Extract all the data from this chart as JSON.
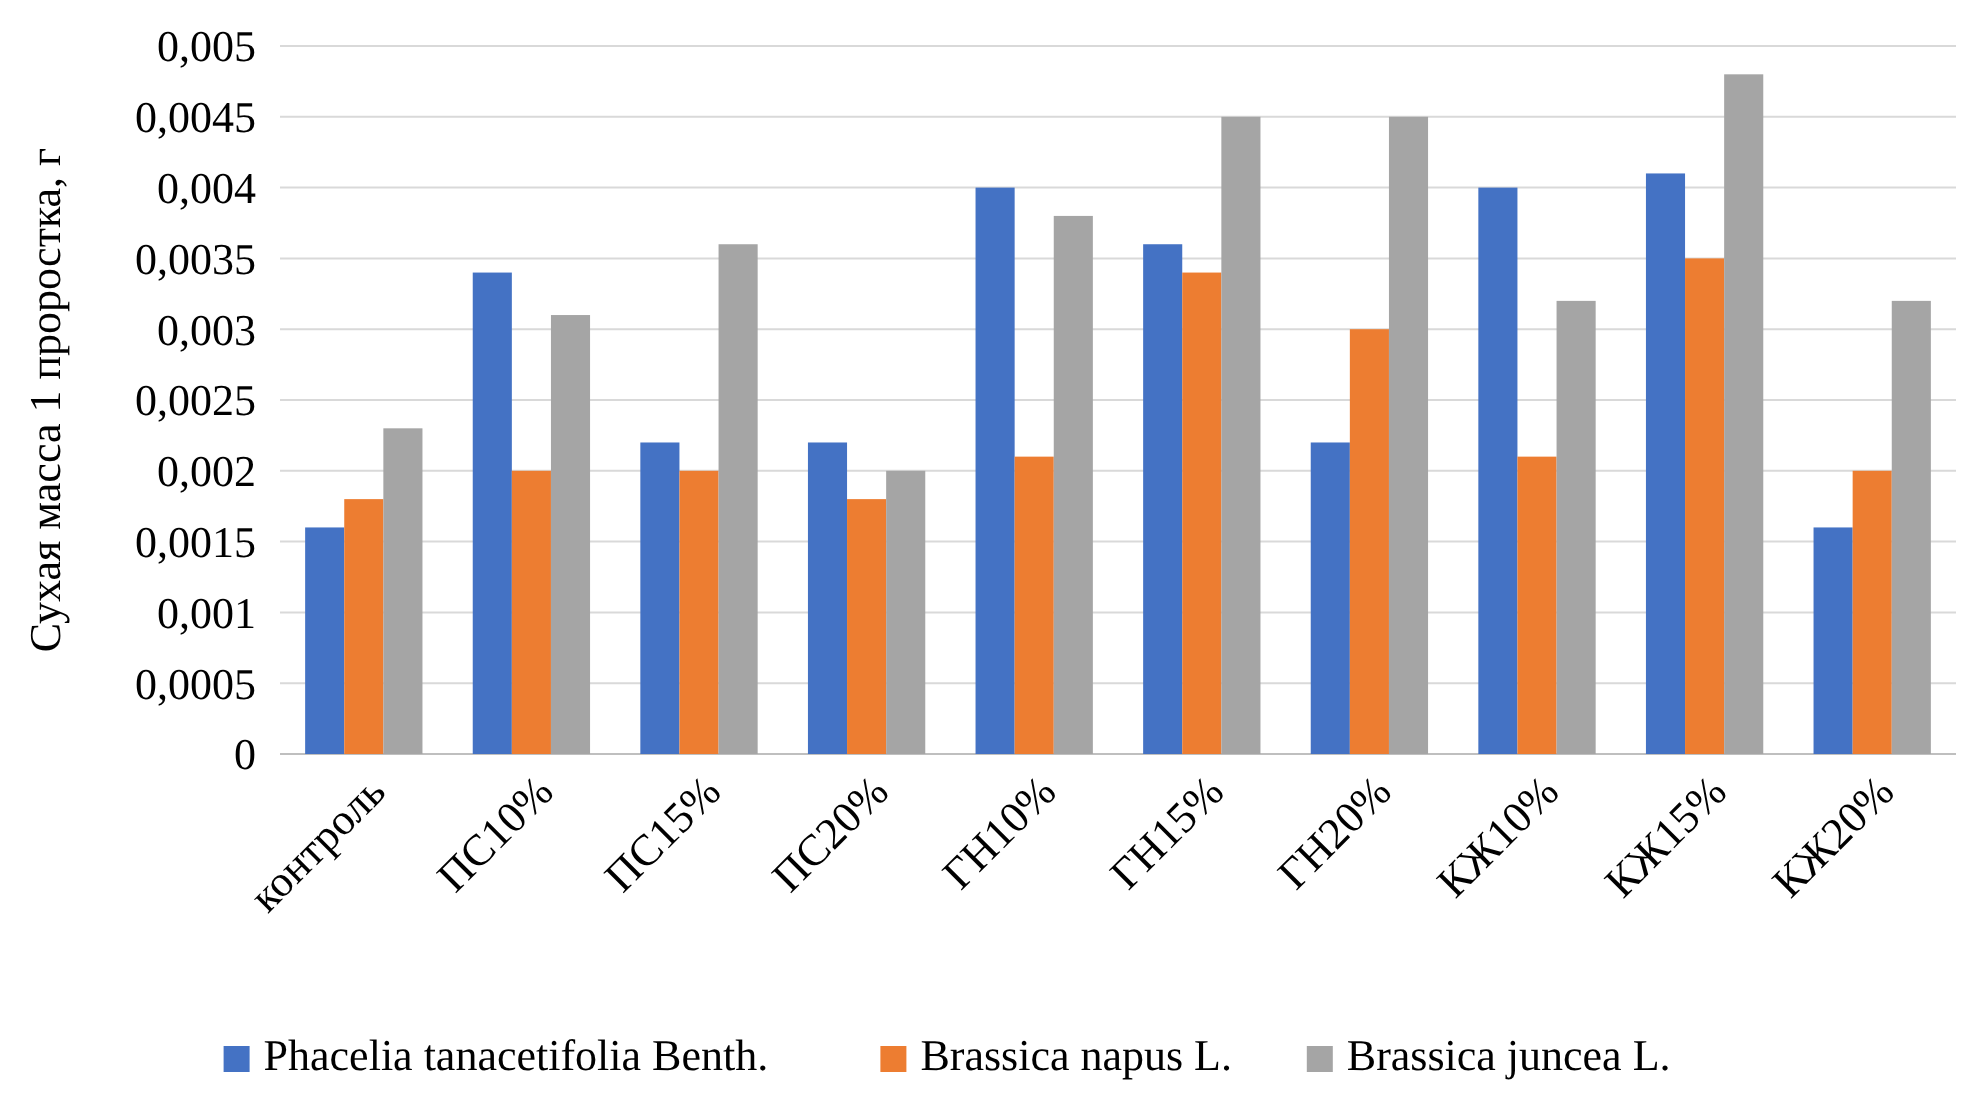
{
  "chart_data": {
    "type": "bar",
    "ylabel": "Сухая масса 1 проростка, г",
    "categories": [
      "контроль",
      "ПС10%",
      "ПС15%",
      "ПС20%",
      "ГН10%",
      "ГН15%",
      "ГН20%",
      "КЖ10%",
      "КЖ15%",
      "КЖ20%"
    ],
    "series": [
      {
        "name": "Phacelia tanacetifolia Benth.",
        "color": "#4472c4",
        "values": [
          0.0016,
          0.0034,
          0.0022,
          0.0022,
          0.004,
          0.0036,
          0.0022,
          0.004,
          0.0041,
          0.0016
        ]
      },
      {
        "name": "Brassica napus L.",
        "color": "#ed7d31",
        "values": [
          0.0018,
          0.002,
          0.002,
          0.0018,
          0.0021,
          0.0034,
          0.003,
          0.0021,
          0.0035,
          0.002
        ]
      },
      {
        "name": "Brassica juncea L.",
        "color": "#a5a5a5",
        "values": [
          0.0023,
          0.0031,
          0.0036,
          0.002,
          0.0038,
          0.0045,
          0.0045,
          0.0032,
          0.0048,
          0.0032
        ]
      }
    ],
    "ylim": [
      0,
      0.005
    ],
    "yticks": [
      0,
      {
        "value": 0.0005,
        "label": "0,0005"
      },
      {
        "value": 0.001,
        "label": "0,001"
      },
      {
        "value": 0.0015,
        "label": "0,0015"
      },
      {
        "value": 0.002,
        "label": "0,002"
      },
      {
        "value": 0.0025,
        "label": "0,0025"
      },
      {
        "value": 0.003,
        "label": "0,003"
      },
      {
        "value": 0.0035,
        "label": "0,0035"
      },
      {
        "value": 0.004,
        "label": "0,004"
      },
      {
        "value": 0.0045,
        "label": "0,0045"
      },
      {
        "value": 0.005,
        "label": "0,005"
      }
    ],
    "grid": "y",
    "legend": "bottom"
  }
}
